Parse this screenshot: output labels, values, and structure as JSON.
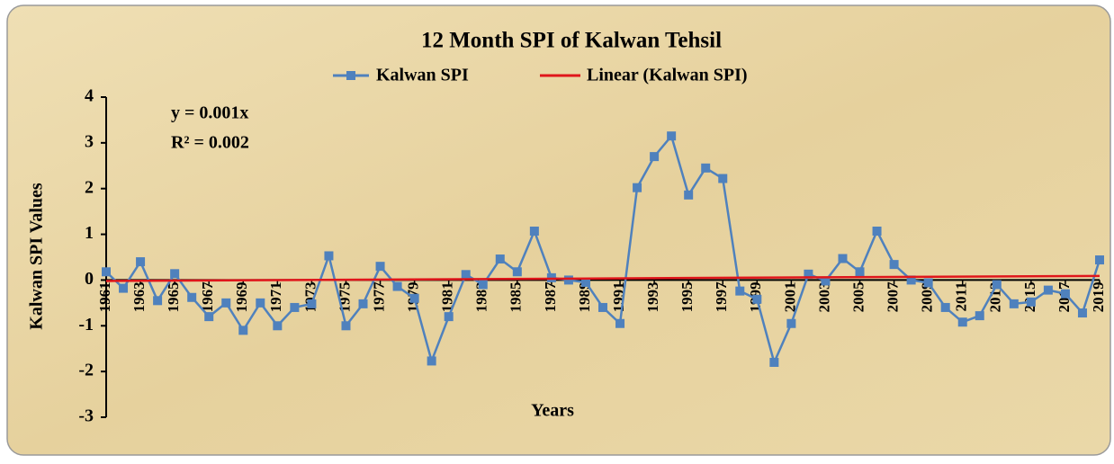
{
  "chart_data": {
    "type": "line",
    "title": "12 Month SPI of Kalwan Tehsil",
    "x_label": "Years",
    "y_label": "Kalwan SPI Values",
    "annotations": [
      "y = 0.001x",
      "R² = 0.002"
    ],
    "x": [
      1961,
      1962,
      1963,
      1964,
      1965,
      1966,
      1967,
      1968,
      1969,
      1970,
      1971,
      1972,
      1973,
      1974,
      1975,
      1976,
      1977,
      1978,
      1979,
      1980,
      1981,
      1982,
      1983,
      1984,
      1985,
      1986,
      1987,
      1988,
      1989,
      1990,
      1991,
      1992,
      1993,
      1994,
      1995,
      1996,
      1997,
      1998,
      1999,
      2000,
      2001,
      2002,
      2003,
      2004,
      2005,
      2006,
      2007,
      2008,
      2009,
      2010,
      2011,
      2012,
      2013,
      2014,
      2015,
      2016,
      2017,
      2018,
      2019
    ],
    "series": [
      {
        "name": "Kalwan SPI",
        "color": "#4f81bd",
        "values": [
          0.18,
          -0.18,
          0.4,
          -0.45,
          0.14,
          -0.38,
          -0.8,
          -0.5,
          -1.1,
          -0.5,
          -1.0,
          -0.6,
          -0.52,
          0.53,
          -1.0,
          -0.52,
          0.3,
          -0.14,
          -0.4,
          -1.77,
          -0.8,
          0.12,
          -0.1,
          0.46,
          0.18,
          1.07,
          0.05,
          0.0,
          -0.05,
          -0.6,
          -0.95,
          2.02,
          2.7,
          3.15,
          1.86,
          2.45,
          2.22,
          -0.24,
          -0.42,
          -1.8,
          -0.95,
          0.13,
          -0.02,
          0.47,
          0.18,
          1.07,
          0.34,
          0.0,
          -0.06,
          -0.6,
          -0.92,
          -0.78,
          -0.1,
          -0.52,
          -0.48,
          -0.22,
          -0.3,
          -0.72,
          0.44
        ]
      }
    ],
    "trendline": {
      "name": "Linear (Kalwan SPI)",
      "color": "#e0161b",
      "x": [
        1961,
        2019
      ],
      "values": [
        -0.02,
        0.09
      ]
    },
    "xlim": [
      1961,
      2019
    ],
    "xticks": [
      1961,
      1963,
      1965,
      1967,
      1969,
      1971,
      1973,
      1975,
      1977,
      1979,
      1981,
      1983,
      1985,
      1987,
      1989,
      1991,
      1993,
      1995,
      1997,
      1999,
      2001,
      2003,
      2005,
      2007,
      2009,
      2011,
      2013,
      2015,
      2017,
      2019
    ],
    "ylim": [
      -3,
      4
    ],
    "yticks": [
      -3,
      -2,
      -1,
      0,
      1,
      2,
      3,
      4
    ],
    "grid": false
  }
}
